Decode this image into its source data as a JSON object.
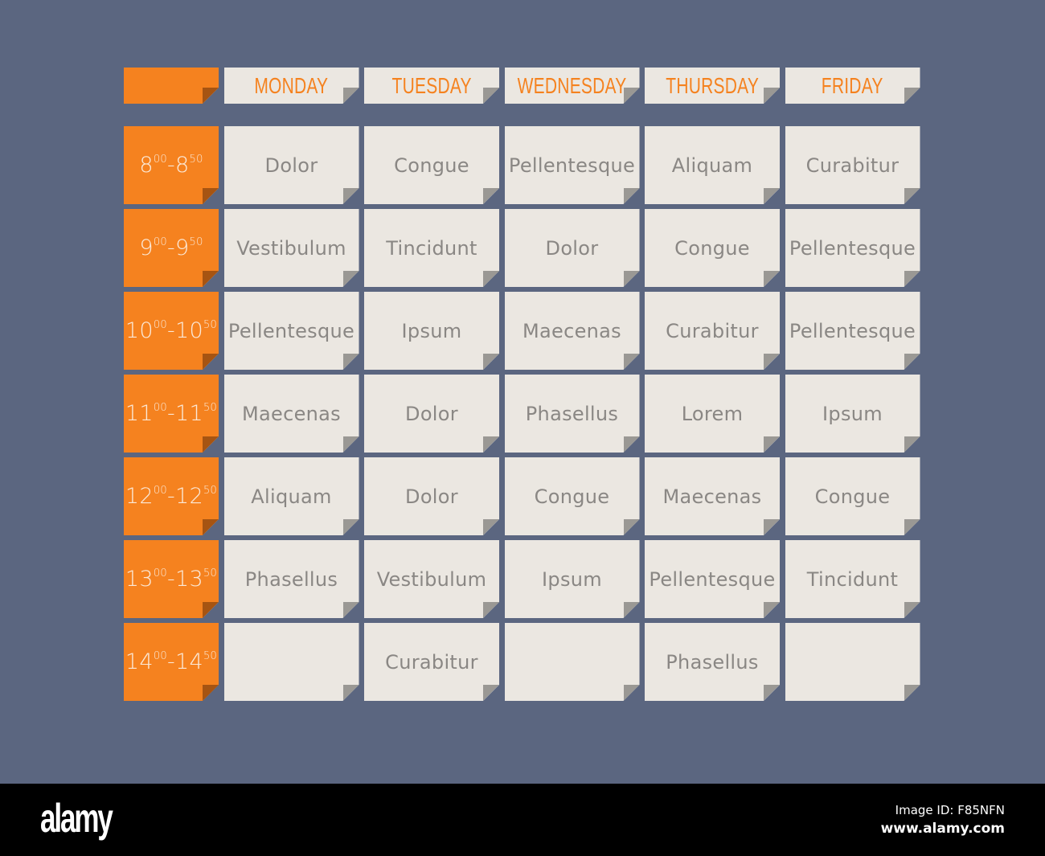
{
  "colors": {
    "background": "#5b6680",
    "accent": "#f5821f",
    "cell": "#ebe7e1",
    "text": "#8a8784"
  },
  "days": [
    "MONDAY",
    "TUESDAY",
    "WEDNESDAY",
    "THURSDAY",
    "FRIDAY"
  ],
  "rows": [
    {
      "start_h": "8",
      "start_m": "00",
      "end_h": "8",
      "end_m": "50",
      "classes": [
        "Dolor",
        "Congue",
        "Pellentesque",
        "Aliquam",
        "Curabitur"
      ]
    },
    {
      "start_h": "9",
      "start_m": "00",
      "end_h": "9",
      "end_m": "50",
      "classes": [
        "Vestibulum",
        "Tincidunt",
        "Dolor",
        "Congue",
        "Pellentesque"
      ]
    },
    {
      "start_h": "10",
      "start_m": "00",
      "end_h": "10",
      "end_m": "50",
      "classes": [
        "Pellentesque",
        "Ipsum",
        "Maecenas",
        "Curabitur",
        "Pellentesque"
      ]
    },
    {
      "start_h": "11",
      "start_m": "00",
      "end_h": "11",
      "end_m": "50",
      "classes": [
        "Maecenas",
        "Dolor",
        "Phasellus",
        "Lorem",
        "Ipsum"
      ]
    },
    {
      "start_h": "12",
      "start_m": "00",
      "end_h": "12",
      "end_m": "50",
      "classes": [
        "Aliquam",
        "Dolor",
        "Congue",
        "Maecenas",
        "Congue"
      ]
    },
    {
      "start_h": "13",
      "start_m": "00",
      "end_h": "13",
      "end_m": "50",
      "classes": [
        "Phasellus",
        "Vestibulum",
        "Ipsum",
        "Pellentesque",
        "Tincidunt"
      ]
    },
    {
      "start_h": "14",
      "start_m": "00",
      "end_h": "14",
      "end_m": "50",
      "classes": [
        "",
        "Curabitur",
        "",
        "Phasellus",
        ""
      ]
    }
  ],
  "footer": {
    "logo": "alamy",
    "image_id": "Image ID: F85NFN",
    "site": "www.alamy.com"
  }
}
